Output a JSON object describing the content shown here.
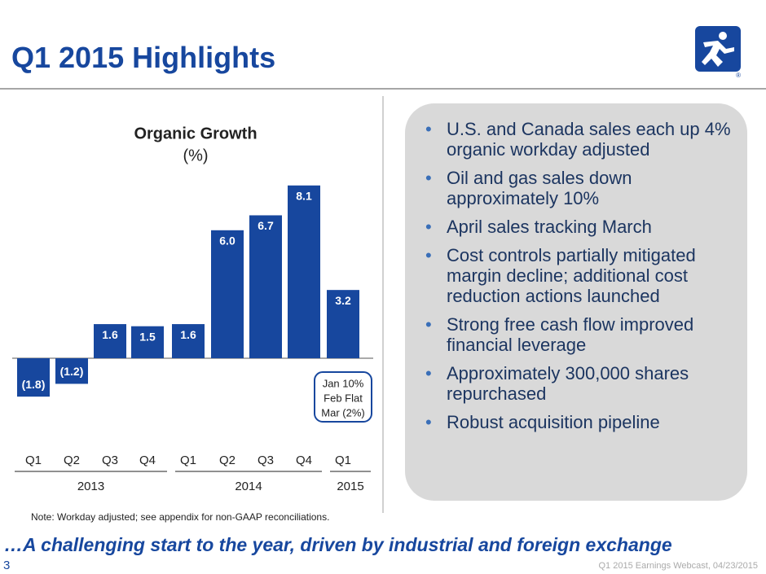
{
  "header": {
    "title": "Q1 2015 Highlights"
  },
  "chart_data": {
    "type": "bar",
    "title": "Organic Growth",
    "subtitle": "(%)",
    "categories": [
      "Q1",
      "Q2",
      "Q3",
      "Q4",
      "Q1",
      "Q2",
      "Q3",
      "Q4",
      "Q1"
    ],
    "years": [
      "2013",
      "2014",
      "2015"
    ],
    "values": [
      -1.8,
      -1.2,
      1.6,
      1.5,
      1.6,
      6.0,
      6.7,
      8.1,
      3.2
    ],
    "value_labels": [
      "(1.8)",
      "(1.2)",
      "1.6",
      "1.5",
      "1.6",
      "6.0",
      "6.7",
      "8.1",
      "3.2"
    ],
    "color": "#17479e",
    "annotation": [
      "Jan 10%",
      "Feb Flat",
      "Mar (2%)"
    ]
  },
  "bullets": [
    "U.S. and Canada sales each up 4% organic workday adjusted",
    "Oil and gas sales down approximately 10%",
    "April sales tracking March",
    "Cost controls partially mitigated margin decline; additional cost reduction actions launched",
    "Strong free cash flow improved financial leverage",
    "Approximately 300,000 shares repurchased",
    "Robust acquisition pipeline"
  ],
  "note": "Note:  Workday adjusted; see appendix for non-GAAP reconciliations.",
  "tagline": "…A challenging start to the year, driven by industrial and foreign exchange",
  "page_number": "3",
  "footer": "Q1 2015 Earnings Webcast, 04/23/2015"
}
